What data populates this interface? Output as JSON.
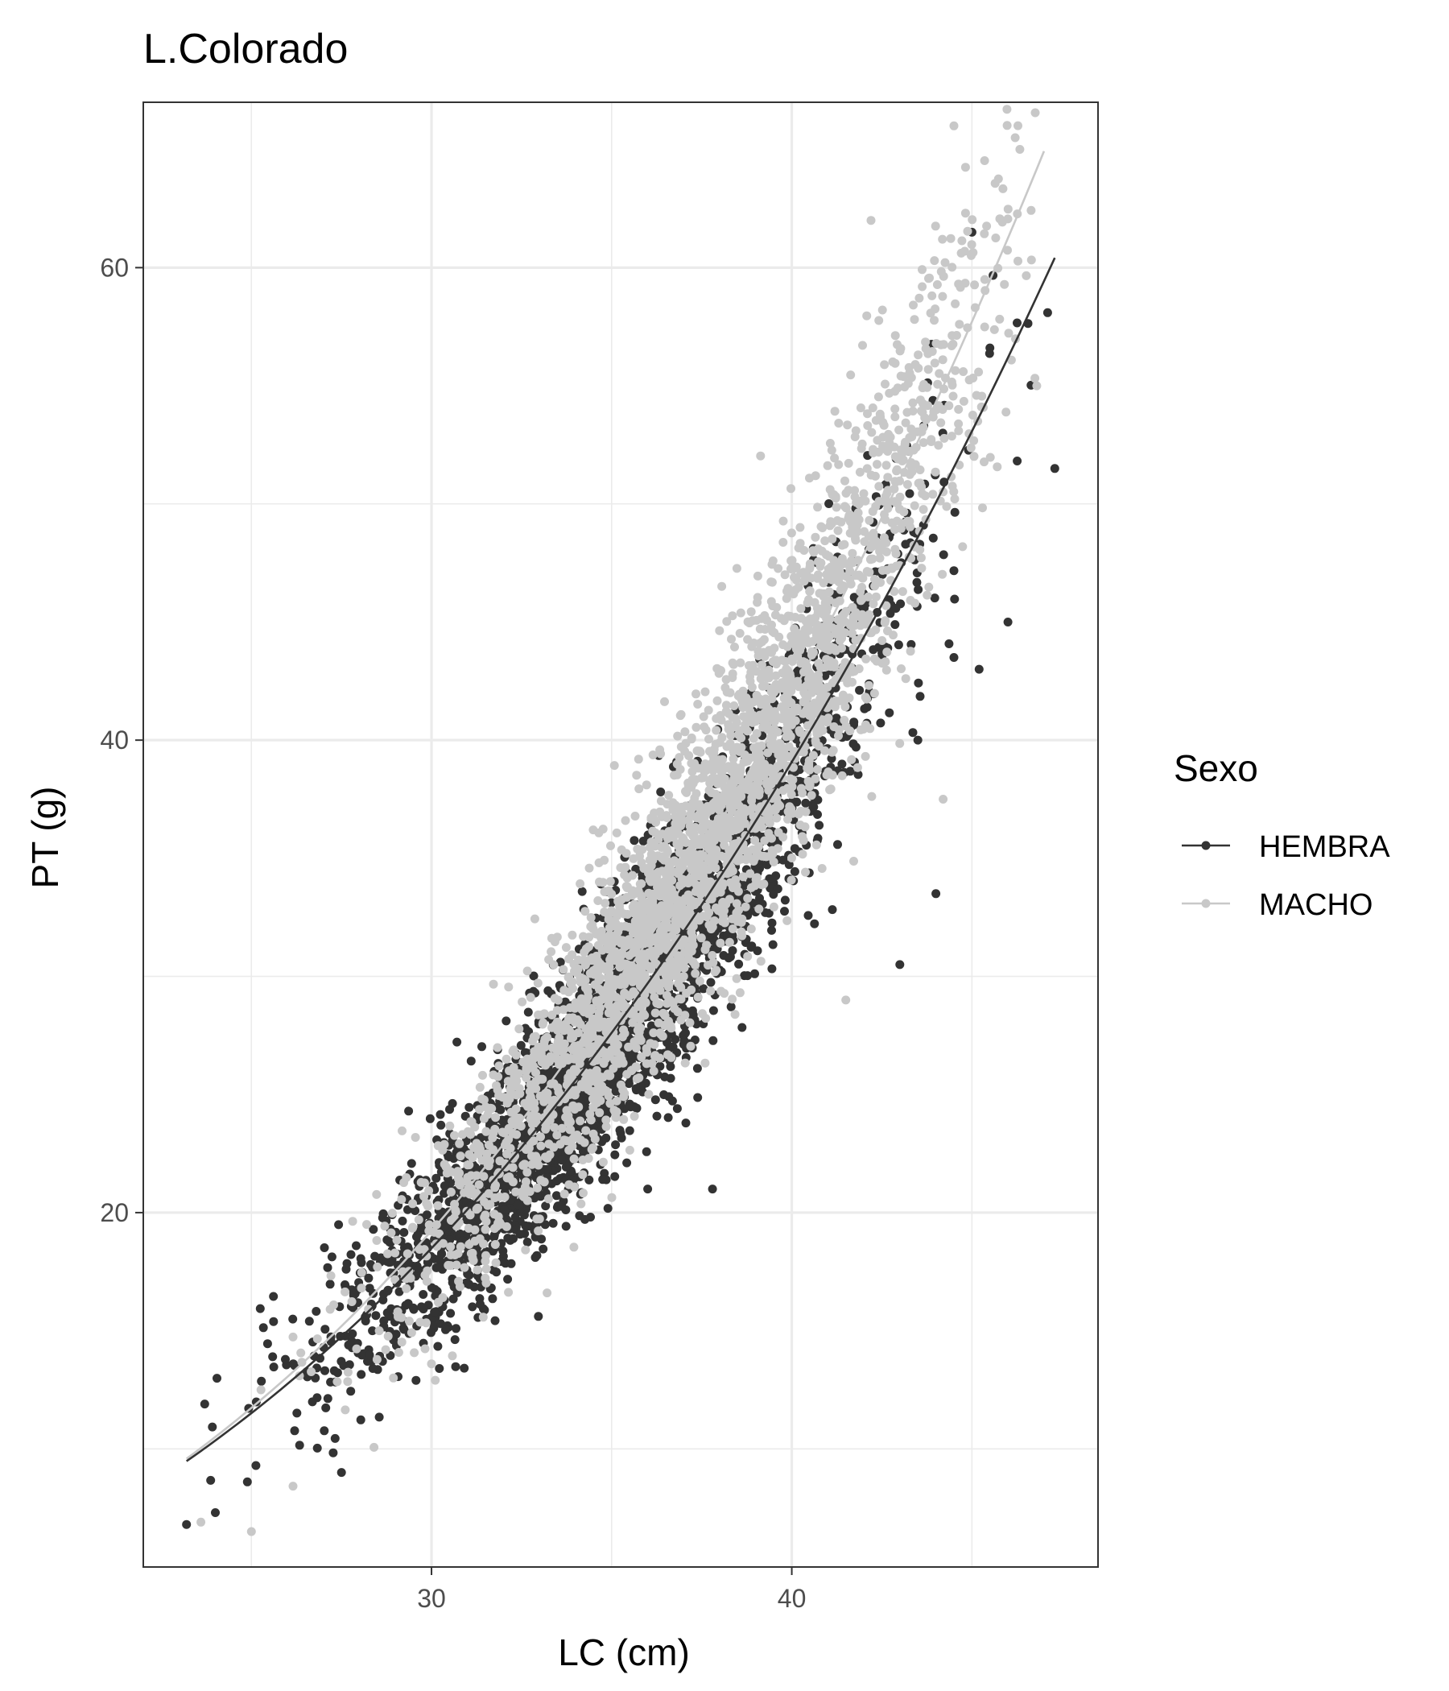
{
  "chart_data": {
    "type": "scatter",
    "title": "L.Colorado",
    "xlabel": "LC (cm)",
    "ylabel": "PT (g)",
    "xlim": [
      22,
      48.5
    ],
    "ylim": [
      5,
      67
    ],
    "x_ticks": [
      30,
      40
    ],
    "y_ticks": [
      20,
      40,
      60
    ],
    "grid": true,
    "legend": {
      "title": "Sexo",
      "position": "right"
    },
    "series": [
      {
        "name": "HEMBRA",
        "color": "#333333",
        "fit": {
          "model": "power",
          "a": 0.00267,
          "b": 2.6,
          "x_range": [
            23.2,
            47.3
          ]
        },
        "cloud": {
          "n": 3200,
          "x_mean": 35.0,
          "x_sd": 3.6,
          "x_range": [
            23.2,
            47.3
          ],
          "y_sd": 2.4
        },
        "extra_points": [
          [
            23.2,
            6.8
          ],
          [
            24.0,
            7.3
          ],
          [
            27.5,
            9.0
          ],
          [
            36.0,
            21.0
          ],
          [
            37.8,
            21.0
          ],
          [
            44.0,
            33.5
          ],
          [
            43.0,
            30.5
          ],
          [
            45.0,
            61.5
          ],
          [
            47.3,
            51.5
          ],
          [
            46.0,
            45.0
          ],
          [
            44.5,
            43.5
          ],
          [
            45.2,
            43.0
          ],
          [
            43.5,
            40.0
          ]
        ]
      },
      {
        "name": "MACHO",
        "color": "#c8c8c8",
        "fit": {
          "model": "power",
          "a": 0.00191,
          "b": 2.71,
          "x_range": [
            23.2,
            47.0
          ]
        },
        "cloud": {
          "n": 3000,
          "x_mean": 37.6,
          "x_sd": 3.9,
          "x_range": [
            23.5,
            46.8
          ],
          "y_sd": 2.6
        },
        "extra_points": [
          [
            23.6,
            6.9
          ],
          [
            25.0,
            6.5
          ],
          [
            44.5,
            66.0
          ],
          [
            46.2,
            65.5
          ],
          [
            42.2,
            62.0
          ],
          [
            46.8,
            55.0
          ],
          [
            44.2,
            37.5
          ],
          [
            41.5,
            29.0
          ],
          [
            28.2,
            19.5
          ],
          [
            30.0,
            13.6
          ]
        ]
      }
    ]
  }
}
